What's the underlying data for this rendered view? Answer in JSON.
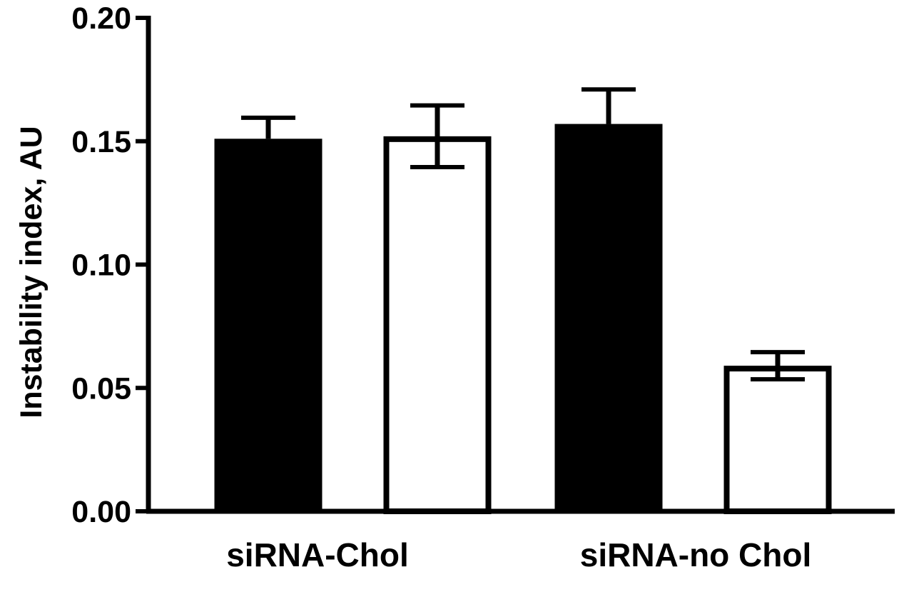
{
  "chart_data": {
    "type": "bar",
    "title": "",
    "xlabel": "",
    "ylabel": "Instability index, AU",
    "ylim": [
      0,
      0.2
    ],
    "yticks": [
      "0.00",
      "0.05",
      "0.10",
      "0.15",
      "0.20"
    ],
    "ytick_values": [
      0,
      0.05,
      0.1,
      0.15,
      0.2
    ],
    "grid": false,
    "categories": [
      "siRNA-Chol",
      "siRNA-no Chol"
    ],
    "series": [
      {
        "name": "filled",
        "fill": "#000000",
        "values": [
          0.151,
          0.157
        ],
        "errors": [
          0.0085,
          0.014
        ]
      },
      {
        "name": "open",
        "fill": "#ffffff",
        "values": [
          0.152,
          0.059
        ],
        "errors": [
          0.0125,
          0.0055
        ]
      }
    ]
  }
}
